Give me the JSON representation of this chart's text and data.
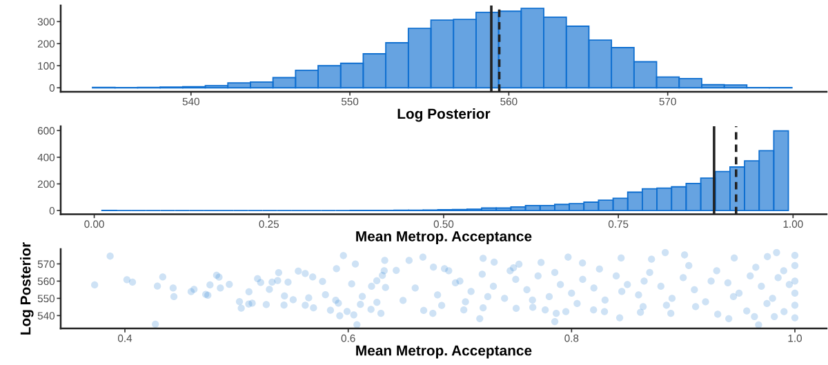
{
  "chart_data": [
    {
      "type": "histogram",
      "xlabel": "Log Posterior",
      "color": "#0f6fd0",
      "bins": [
        533.8,
        535.22,
        536.64,
        538.06,
        539.48,
        540.9,
        542.32,
        543.74,
        545.16,
        546.58,
        548.0,
        549.42,
        550.84,
        552.26,
        553.68,
        555.1,
        556.52,
        557.94,
        559.36,
        560.78,
        562.2,
        563.62,
        565.04,
        566.46,
        567.88,
        569.3,
        570.72,
        572.14,
        573.56,
        574.98,
        576.4,
        577.82
      ],
      "values": [
        2,
        1,
        2,
        3,
        5,
        10,
        22,
        26,
        46,
        79,
        100,
        111,
        154,
        204,
        269,
        307,
        310,
        342,
        347,
        360,
        320,
        279,
        216,
        182,
        118,
        49,
        42,
        14,
        13,
        1,
        1
      ],
      "xlim": [
        531.8,
        580.0
      ],
      "ylim": [
        -18,
        373
      ],
      "xticks": [
        540,
        550,
        560,
        570
      ],
      "yticks": [
        0,
        100,
        200,
        300
      ],
      "ref_lines": [
        {
          "axis": "x",
          "value": 558.9,
          "color": "#222222",
          "line_style": "solid"
        },
        {
          "axis": "x",
          "value": 559.4,
          "color": "#222222",
          "line_style": "dashed"
        }
      ],
      "grid": false,
      "legend": false
    },
    {
      "type": "histogram",
      "xlabel": "Mean Metrop. Acceptance",
      "color": "#0f6fd0",
      "bins": [
        0.011,
        0.0319,
        0.0528,
        0.0737,
        0.0946,
        0.1155,
        0.1364,
        0.1573,
        0.1782,
        0.1991,
        0.22,
        0.2409,
        0.2618,
        0.2827,
        0.3036,
        0.3245,
        0.3454,
        0.3663,
        0.3872,
        0.4081,
        0.429,
        0.4499,
        0.4708,
        0.4917,
        0.5126,
        0.5335,
        0.5544,
        0.5753,
        0.5962,
        0.6171,
        0.638,
        0.6589,
        0.6798,
        0.7007,
        0.7216,
        0.7425,
        0.7634,
        0.7843,
        0.8052,
        0.8261,
        0.847,
        0.8679,
        0.8888,
        0.9097,
        0.9306,
        0.9515,
        0.9724,
        0.9933
      ],
      "values": [
        1,
        0,
        0,
        0,
        0,
        0,
        0,
        0,
        0,
        0,
        0,
        0,
        0,
        0,
        0,
        0,
        0,
        2,
        2,
        2,
        3,
        3,
        4,
        6,
        8,
        11,
        19,
        19,
        27,
        38,
        38,
        46,
        52,
        63,
        78,
        92,
        138,
        163,
        168,
        178,
        203,
        243,
        293,
        327,
        373,
        449,
        598
      ],
      "xlim": [
        -0.048,
        1.048
      ],
      "ylim": [
        -28,
        632
      ],
      "xticks": [
        {
          "value": 0,
          "label": "0.00"
        },
        {
          "value": 0.25,
          "label": "0.25"
        },
        {
          "value": 0.5,
          "label": "0.50"
        },
        {
          "value": 0.75,
          "label": "0.75"
        },
        {
          "value": 1,
          "label": "1.00"
        }
      ],
      "yticks": [
        0,
        200,
        400,
        600
      ],
      "ref_lines": [
        {
          "axis": "x",
          "value": 0.887,
          "color": "#222222",
          "line_style": "solid"
        },
        {
          "axis": "x",
          "value": 0.9185,
          "color": "#222222",
          "line_style": "dashed"
        }
      ],
      "grid": false,
      "legend": false
    },
    {
      "type": "scatter",
      "xlabel": "Mean Metrop. Acceptance",
      "ylabel": "Log Posterior",
      "color": "#3a8ad6",
      "marker": "circle",
      "x": [
        0.3729,
        0.3868,
        0.4018,
        0.4068,
        0.4273,
        0.4291,
        0.4339,
        0.4432,
        0.4439,
        0.4593,
        0.4619,
        0.4724,
        0.4743,
        0.4762,
        0.4821,
        0.4843,
        0.4855,
        0.4935,
        0.5026,
        0.5042,
        0.5111,
        0.5109,
        0.514,
        0.5188,
        0.5216,
        0.5266,
        0.5294,
        0.5318,
        0.5368,
        0.5377,
        0.5425,
        0.5461,
        0.5429,
        0.5507,
        0.5553,
        0.5615,
        0.5615,
        0.5646,
        0.5682,
        0.5689,
        0.577,
        0.5796,
        0.5841,
        0.5895,
        0.5888,
        0.5912,
        0.5924,
        0.5957,
        0.599,
        0.6031,
        0.605,
        0.6064,
        0.6078,
        0.6109,
        0.6126,
        0.6209,
        0.6256,
        0.6204,
        0.6306,
        0.6322,
        0.6327,
        0.6334,
        0.6293,
        0.6257,
        0.643,
        0.6545,
        0.6669,
        0.6491,
        0.6676,
        0.6758,
        0.6837,
        0.6763,
        0.6862,
        0.696,
        0.7035,
        0.7178,
        0.7208,
        0.7307,
        0.7208,
        0.748,
        0.7504,
        0.7529,
        0.7653,
        0.7727,
        0.7764,
        0.785,
        0.7863,
        0.7949,
        0.7969,
        0.8098,
        0.8197,
        0.8295,
        0.8431,
        0.8444,
        0.8617,
        0.8641,
        0.8716,
        0.8839,
        0.8889,
        0.9012,
        0.9111,
        0.9309,
        0.9408,
        0.9457,
        0.9569,
        0.9638,
        0.9675,
        0.9754,
        0.9816,
        0.9836,
        0.9903,
        1.0,
        1.0,
        0.66,
        0.68,
        0.7,
        0.71,
        0.72,
        0.73,
        0.74,
        0.75,
        0.76,
        0.77,
        0.78,
        0.79,
        0.8,
        0.81,
        0.82,
        0.83,
        0.84,
        0.85,
        0.86,
        0.87,
        0.88,
        0.89,
        0.9,
        0.91,
        0.92,
        0.93,
        0.94,
        0.95,
        0.96,
        0.97,
        0.98,
        0.99,
        1.0,
        1.0,
        1.0,
        1.0,
        0.995,
        0.985,
        0.975,
        0.965,
        0.945,
        0.925,
        0.905,
        0.885,
        0.865,
        0.845,
        0.825,
        0.805,
        0.785,
        0.765,
        0.745,
        0.725,
        0.705,
        0.69
      ],
      "values": [
        557.8,
        574.5,
        560.8,
        559.4,
        535.0,
        557.1,
        562.4,
        556.0,
        551.0,
        553.9,
        555.2,
        552.3,
        551.8,
        557.8,
        563.4,
        562.3,
        556.0,
        558.1,
        548.1,
        544.3,
        553.8,
        546.7,
        547.2,
        561.4,
        559.2,
        546.4,
        555.2,
        559.4,
        560.3,
        564.9,
        546.1,
        559.4,
        551.4,
        549.2,
        565.8,
        564.4,
        546.0,
        550.3,
        562.4,
        544.5,
        559.8,
        552.1,
        543.1,
        567.2,
        548.9,
        547.2,
        539.9,
        574.8,
        542.4,
        558.4,
        540.4,
        569.9,
        534.7,
        546.5,
        551.1,
        557.0,
        560.2,
        543.6,
        563.3,
        566.0,
        572.0,
        556.3,
        541.3,
        547.7,
        566.2,
        572.0,
        573.9,
        548.8,
        543.0,
        541.3,
        545.9,
        568.1,
        567.2,
        559.0,
        543.3,
        538.2,
        573.2,
        571.0,
        544.5,
        567.7,
        544.2,
        569.8,
        544.8,
        570.8,
        543.3,
        536.5,
        541.3,
        542.3,
        573.9,
        570.5,
        543.3,
        542.3,
        538.7,
        573.4,
        541.9,
        545.2,
        572.7,
        576.6,
        541.3,
        575.2,
        545.2,
        540.8,
        538.2,
        573.4,
        542.7,
        539.4,
        534.6,
        574.2,
        539.4,
        576.6,
        542.3,
        574.9,
        538.7,
        556,
        552,
        560,
        554,
        564,
        557,
        550,
        561,
        555,
        563,
        551,
        558,
        553,
        561,
        556,
        549,
        563,
        558,
        552,
        565,
        557,
        550,
        562,
        555,
        548,
        566,
        559,
        553,
        563,
        557,
        550,
        566,
        560,
        553,
        569,
        546,
        558,
        562,
        547,
        568,
        551,
        560,
        569,
        546,
        560,
        554,
        567,
        547,
        565,
        549,
        566,
        551,
        548,
        566
      ],
      "xlim": [
        0.3425,
        1.0284
      ],
      "ylim": [
        532.5,
        578.6
      ],
      "xticks": [
        0.4,
        0.6,
        0.8,
        {
          "value": 1.0,
          "label": "1.0"
        }
      ],
      "yticks": [
        540,
        550,
        560,
        570
      ],
      "grid": false,
      "legend": false
    }
  ]
}
